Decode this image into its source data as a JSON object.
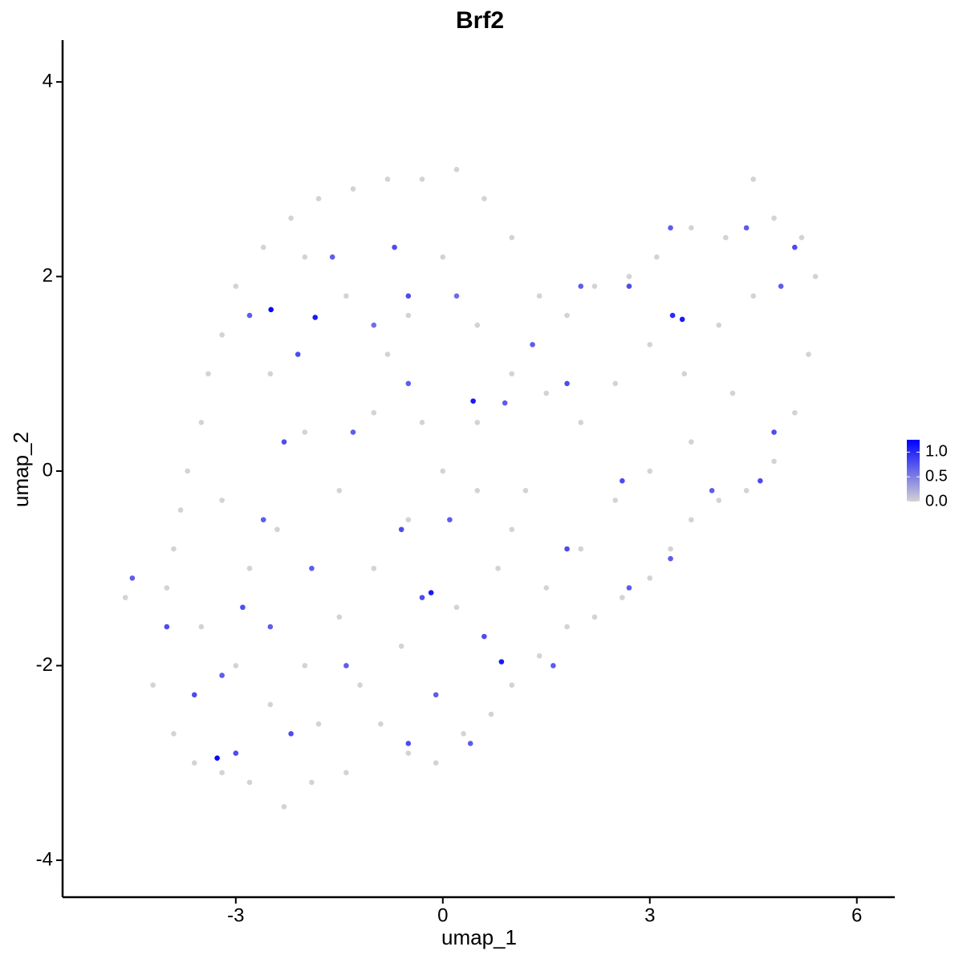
{
  "chart_data": {
    "type": "scatter",
    "title": "Brf2",
    "x_label": "umap_1",
    "y_label": "umap_2",
    "xlim": [
      -5.51,
      6.55
    ],
    "ylim": [
      -4.38,
      4.43
    ],
    "xticks": [
      -3,
      0,
      3,
      6
    ],
    "yticks": [
      -4,
      -2,
      0,
      2,
      4
    ],
    "color_low": "#d3d3d3",
    "color_high": "#0000ff",
    "colorbar_lim": [
      0,
      1.25
    ],
    "colorbar_ticks": [
      {
        "value": 0,
        "label": "0.0"
      },
      {
        "value": 0.5,
        "label": "0.5"
      },
      {
        "value": 1,
        "label": "1.0"
      }
    ],
    "x": [
      -4.6,
      -4.2,
      -3.9,
      -3.6,
      -3.2,
      -2.8,
      -2.3,
      -1.9,
      -1.4,
      -0.9,
      -0.5,
      -0.1,
      0.3,
      0.7,
      1.0,
      1.4,
      1.8,
      2.2,
      2.6,
      3.0,
      3.3,
      3.6,
      4.0,
      4.4,
      4.8,
      5.1,
      5.3,
      5.4,
      5.2,
      4.8,
      4.5,
      4.1,
      3.6,
      3.1,
      2.7,
      2.2,
      1.8,
      1.4,
      1.0,
      0.6,
      0.2,
      -0.3,
      -0.8,
      -1.3,
      -1.8,
      -2.2,
      -2.6,
      -3.0,
      -3.2,
      -3.4,
      -3.5,
      -3.7,
      -3.8,
      -3.9,
      -4.0,
      -3.5,
      -3.0,
      -2.5,
      -2.0,
      -1.5,
      -1.0,
      -0.5,
      0.0,
      0.5,
      1.0,
      1.5,
      2.0,
      2.5,
      3.0,
      3.5,
      4.0,
      4.5,
      4.2,
      3.6,
      3.0,
      2.5,
      2.0,
      1.5,
      1.0,
      0.5,
      -0.3,
      -0.8,
      -1.4,
      -2.0,
      -2.5,
      -2.0,
      -1.5,
      -1.0,
      -0.5,
      0.0,
      0.5,
      1.2,
      -2.8,
      -3.2,
      -2.4,
      -1.8,
      -1.2,
      -0.6,
      0.2,
      0.8,
      -4.5,
      -4.0,
      -3.6,
      -3.2,
      -2.9,
      -2.6,
      -2.3,
      -2.8,
      -2.1,
      -1.6,
      -1.0,
      -0.5,
      -0.7,
      -1.3,
      -0.6,
      0.1,
      -0.3,
      0.6,
      -0.1,
      -0.5,
      0.4,
      -1.4,
      -2.2,
      -2.5,
      -1.9,
      1.3,
      1.8,
      2.6,
      3.3,
      3.9,
      4.6,
      4.8,
      4.9,
      5.1,
      4.4,
      3.3,
      2.7,
      2.0,
      0.9,
      0.2,
      -0.5,
      1.8,
      2.7,
      1.6,
      -3.0,
      -2.49,
      -1.85,
      0.44,
      3.47,
      3.33,
      -0.17,
      0.85,
      -3.27
    ],
    "y": [
      -1.3,
      -2.2,
      -2.7,
      -3.0,
      -3.1,
      -3.2,
      -3.45,
      -3.2,
      -3.1,
      -2.6,
      -2.9,
      -3.0,
      -2.7,
      -2.5,
      -2.2,
      -1.9,
      -1.6,
      -1.5,
      -1.3,
      -1.1,
      -0.8,
      -0.5,
      -0.3,
      -0.2,
      0.1,
      0.6,
      1.2,
      2.0,
      2.4,
      2.6,
      3.0,
      2.4,
      2.5,
      2.2,
      2.0,
      1.9,
      1.6,
      1.8,
      2.4,
      2.8,
      3.1,
      3.0,
      3.0,
      2.9,
      2.8,
      2.6,
      2.3,
      1.9,
      1.4,
      1.0,
      0.5,
      0.0,
      -0.4,
      -0.8,
      -1.2,
      -1.6,
      -2.0,
      -2.4,
      -2.0,
      -1.5,
      -1.0,
      -0.5,
      0.0,
      0.5,
      1.0,
      0.8,
      0.5,
      0.9,
      1.3,
      1.0,
      1.5,
      1.8,
      0.8,
      0.3,
      0.0,
      -0.3,
      -0.8,
      -1.2,
      -0.6,
      -0.2,
      0.5,
      1.2,
      1.8,
      2.2,
      1.0,
      0.4,
      -0.2,
      0.6,
      1.6,
      2.2,
      1.5,
      -0.2,
      -1.0,
      -0.3,
      -0.6,
      -2.6,
      -2.2,
      -1.8,
      -1.4,
      -1.0,
      -1.1,
      -1.6,
      -2.3,
      -2.1,
      -1.4,
      -0.5,
      0.3,
      1.6,
      1.2,
      2.2,
      1.5,
      0.9,
      2.3,
      0.4,
      -0.6,
      -0.5,
      -1.3,
      -1.7,
      -2.3,
      -2.8,
      -2.8,
      -2.0,
      -2.7,
      -1.6,
      -1.0,
      1.3,
      0.9,
      -0.1,
      -0.9,
      -0.2,
      -0.1,
      0.4,
      1.9,
      2.3,
      2.5,
      2.5,
      1.9,
      1.9,
      0.7,
      1.8,
      1.8,
      -0.8,
      -1.2,
      -2.0,
      -2.9,
      1.66,
      1.58,
      0.72,
      1.56,
      1.6,
      -1.25,
      -1.96,
      -2.95
    ],
    "values": [
      0,
      0,
      0,
      0,
      0,
      0,
      0,
      0,
      0,
      0,
      0,
      0,
      0,
      0,
      0,
      0,
      0,
      0,
      0,
      0,
      0,
      0,
      0,
      0,
      0,
      0,
      0,
      0,
      0,
      0,
      0,
      0,
      0,
      0,
      0,
      0,
      0,
      0,
      0,
      0,
      0,
      0,
      0,
      0,
      0,
      0,
      0,
      0,
      0,
      0,
      0,
      0,
      0,
      0,
      0,
      0,
      0,
      0,
      0,
      0,
      0,
      0,
      0,
      0,
      0,
      0,
      0,
      0,
      0,
      0,
      0,
      0,
      0,
      0,
      0,
      0,
      0,
      0,
      0,
      0,
      0,
      0,
      0,
      0,
      0,
      0,
      0,
      0,
      0,
      0,
      0,
      0,
      0,
      0,
      0,
      0,
      0,
      0,
      0,
      0,
      0.7,
      0.8,
      0.8,
      0.7,
      0.8,
      0.7,
      0.8,
      0.7,
      0.8,
      0.7,
      0.6,
      0.7,
      0.8,
      0.7,
      0.8,
      0.7,
      0.8,
      0.8,
      0.7,
      0.8,
      0.7,
      0.7,
      0.8,
      0.7,
      0.7,
      0.7,
      0.8,
      0.8,
      0.7,
      0.7,
      0.8,
      0.8,
      0.7,
      0.8,
      0.7,
      0.7,
      0.8,
      0.7,
      0.7,
      0.6,
      0.8,
      0.8,
      0.7,
      0.7,
      0.8,
      1.2,
      1.1,
      1.1,
      1.1,
      1.0,
      1.1,
      1.1,
      1.2
    ]
  }
}
